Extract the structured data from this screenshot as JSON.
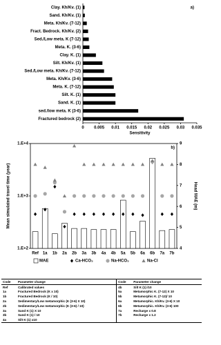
{
  "chart_data": [
    {
      "type": "hbar",
      "annotation": "a)",
      "x_label": "Sensitivity",
      "categories": [
        "Clay. Kh/Kv. (1)",
        "Sand. Kh/Kv. (1)",
        "Meta. Kh/Kv. (7-12)",
        "Fract. Bedrock. Kh/Kv. (2)",
        "Sed./Low meta. K (7-12)",
        "Meta. K. (3-6)",
        "Clay. K. (1)",
        "Silt. Kh/Kv. (1)",
        "Sed./Low meta. Kh/Kv. (7-12)",
        "Meta. Kh/Kv. (3-6)",
        "Meta. K. (7-12)",
        "Silt. K. (1)",
        "Sand. K. (1)",
        "sed./low meta. K (3-6)",
        "Fractured bedrock (2)"
      ],
      "values": [
        0.0005,
        0.0006,
        0.0012,
        0.0016,
        0.0018,
        0.002,
        0.004,
        0.006,
        0.0065,
        0.009,
        0.0095,
        0.01,
        0.01,
        0.017,
        0.031
      ],
      "color": "#000000",
      "xlim": [
        0,
        0.035
      ],
      "xticks": [
        0,
        0.005,
        0.01,
        0.015,
        0.02,
        0.025,
        0.03,
        0.035
      ]
    },
    {
      "type": "combo",
      "annotation": "b)",
      "y_label": "Mean simulated travel time (year)",
      "y2_label": "Head MAE (m)",
      "categories": [
        "Ref",
        "1a",
        "1b",
        "2a",
        "2b",
        "3a",
        "3b",
        "4a",
        "4b",
        "5a",
        "5b",
        "6a",
        "6b",
        "7a",
        "7b"
      ],
      "ylog": true,
      "ylim": [
        100,
        10000
      ],
      "yticks": [
        {
          "value": 100,
          "label": "1.E+2"
        },
        {
          "value": 1000,
          "label": "1.E+3"
        },
        {
          "value": 10000,
          "label": "1.E+4"
        }
      ],
      "y2lim": [
        4,
        9
      ],
      "y2ticks": [
        4,
        5,
        6,
        7,
        8,
        9
      ],
      "series": [
        {
          "name": "MAE",
          "marker": "bar",
          "axis": "y2",
          "color": "#ffffff",
          "values": [
            4.8,
            5.9,
            4.7,
            5.2,
            4.95,
            4.95,
            4.9,
            4.9,
            4.9,
            6.3,
            4.8,
            5.3,
            8.3,
            4.85,
            4.9
          ]
        },
        {
          "name": "Ca-HCO₃",
          "marker": "diamond",
          "color": "#000000",
          "values": [
            450,
            550,
            1500,
            260,
            450,
            450,
            450,
            450,
            450,
            450,
            450,
            430,
            4400,
            450,
            450
          ]
        },
        {
          "name": "Na-HCO₃",
          "marker": "circle",
          "color": "#a6a6a6",
          "values": [
            1000,
            1100,
            1800,
            500,
            1000,
            1000,
            1000,
            1000,
            1000,
            1000,
            1000,
            1000,
            4500,
            1000,
            1000
          ]
        },
        {
          "name": "Na-Cl",
          "marker": "triangle",
          "color": "#808080",
          "values": [
            4000,
            3500,
            2000,
            1000,
            9000,
            4000,
            4000,
            4000,
            4000,
            4000,
            4000,
            4000,
            4700,
            4000,
            4000
          ]
        }
      ]
    }
  ],
  "table": {
    "header": [
      "Code",
      "Parameter change",
      "Code",
      "Parameter change"
    ],
    "rows": [
      [
        "Ref",
        "Calibrated values",
        "4b",
        "Silt K (1) /10"
      ],
      [
        "1a",
        "Fractured Bedrock (K x 10)",
        "5a",
        "Metamorphic K. (7-12) X 10"
      ],
      [
        "1b",
        "Fractured Bedrock (K / 10)",
        "5b",
        "Metamorphic K. (7-12)/ 10"
      ],
      [
        "2a",
        "Sedimentary/Low metamorphic (K (3-6) X 10)",
        "6a",
        "Metamorphic. Kh/Kv. (3-6) X 10"
      ],
      [
        "2b",
        "Sedimentary/Low metamorphic (K (3-6) / 10)",
        "6b",
        "Metamorphic. Kh/Kv. (3-6) 100"
      ],
      [
        "3a",
        "Sand K (1) X 10",
        "7a",
        "Recharge x 0.8"
      ],
      [
        "3b",
        "Sand K (1) / 10",
        "7b",
        "Recharge x 1.2"
      ],
      [
        "4a",
        "Silt K (1) x10"
      ]
    ]
  }
}
